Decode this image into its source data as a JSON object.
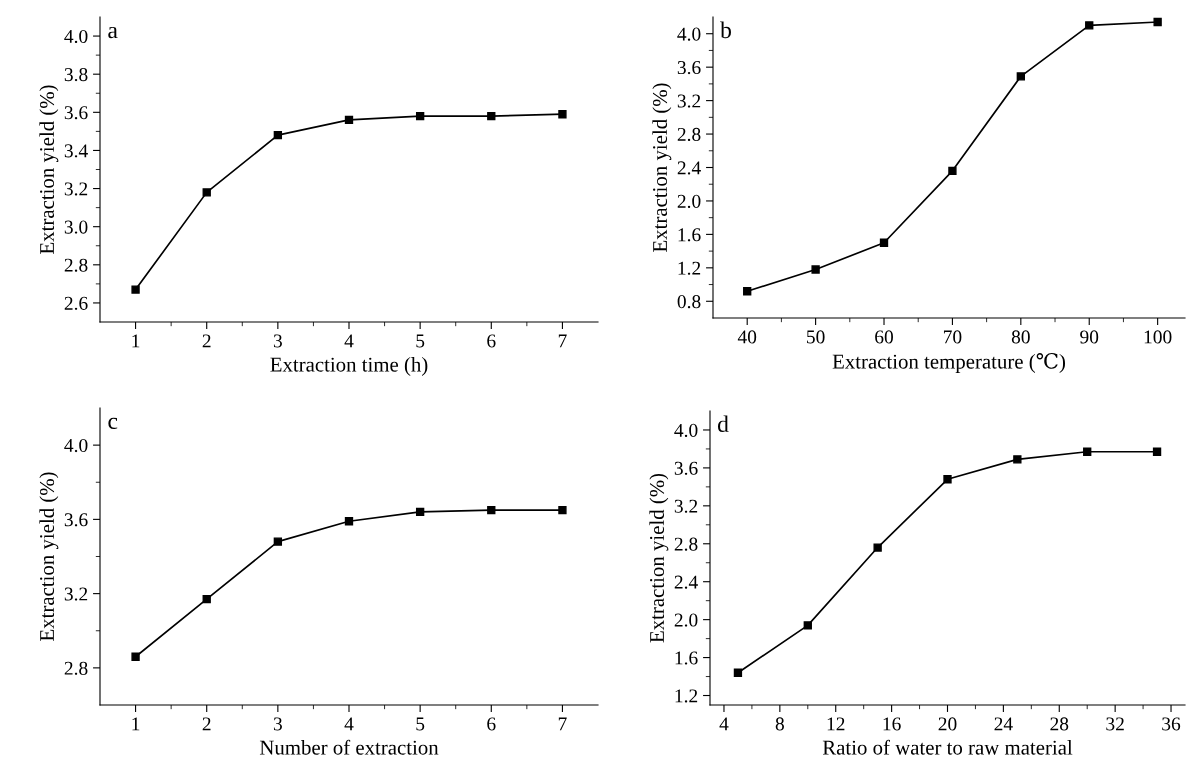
{
  "chart_data": [
    {
      "type": "line",
      "annotations": [
        "a"
      ],
      "xlabel": "Extraction time (h)",
      "ylabel": "Extraction yield (%)",
      "marker": "square",
      "color": "#000000",
      "x": [
        1,
        2,
        3,
        4,
        5,
        6,
        7
      ],
      "values": [
        2.67,
        3.18,
        3.48,
        3.56,
        3.58,
        3.58,
        3.59
      ],
      "xlim": [
        0.5,
        7.5
      ],
      "ylim": [
        2.5,
        4.1
      ],
      "xticks": [
        1,
        2,
        3,
        4,
        5,
        6,
        7
      ],
      "yticks": [
        2.6,
        2.8,
        {
          "value": 3,
          "label": "3.0"
        },
        3.2,
        3.4,
        3.6,
        3.8,
        {
          "value": 4,
          "label": "4.0"
        }
      ]
    },
    {
      "type": "line",
      "annotations": [
        "b"
      ],
      "xlabel": "Extraction temperature (℃)",
      "ylabel": "Extraction yield (%)",
      "marker": "square",
      "color": "#000000",
      "x": [
        40,
        50,
        60,
        70,
        80,
        90,
        100
      ],
      "values": [
        0.92,
        1.18,
        1.5,
        2.36,
        3.49,
        4.1,
        4.14
      ],
      "xlim": [
        35,
        104
      ],
      "ylim": [
        0.6,
        4.2
      ],
      "xticks": [
        40,
        50,
        60,
        70,
        80,
        90,
        100
      ],
      "yticks": [
        0.8,
        1.2,
        1.6,
        {
          "value": 2,
          "label": "2.0"
        },
        2.4,
        2.8,
        3.2,
        3.6,
        {
          "value": 4,
          "label": "4.0"
        }
      ]
    },
    {
      "type": "line",
      "annotations": [
        "c"
      ],
      "xlabel": "Number of extraction",
      "ylabel": "Extraction yield (%)",
      "marker": "square",
      "color": "#000000",
      "x": [
        1,
        2,
        3,
        4,
        5,
        6,
        7
      ],
      "values": [
        2.86,
        3.17,
        3.48,
        3.59,
        3.64,
        3.65,
        3.65
      ],
      "xlim": [
        0.5,
        7.5
      ],
      "ylim": [
        2.6,
        4.2
      ],
      "xticks": [
        1,
        2,
        3,
        4,
        5,
        6,
        7
      ],
      "yticks": [
        2.8,
        3.2,
        3.6,
        {
          "value": 4,
          "label": "4.0"
        }
      ]
    },
    {
      "type": "line",
      "annotations": [
        "d"
      ],
      "xlabel": "Ratio of water to raw material",
      "ylabel": "Extraction yield (%)",
      "marker": "square",
      "color": "#000000",
      "x": [
        5,
        10,
        15,
        20,
        25,
        30,
        35
      ],
      "values": [
        1.44,
        1.94,
        2.76,
        3.48,
        3.69,
        3.77,
        3.77
      ],
      "xlim": [
        3,
        37
      ],
      "ylim": [
        1.1,
        4.2
      ],
      "xticks": [
        4,
        8,
        12,
        16,
        20,
        24,
        28,
        32,
        36
      ],
      "yticks": [
        1.2,
        1.6,
        {
          "value": 2,
          "label": "2.0"
        },
        2.4,
        2.8,
        3.2,
        3.6,
        {
          "value": 4,
          "label": "4.0"
        }
      ]
    }
  ]
}
